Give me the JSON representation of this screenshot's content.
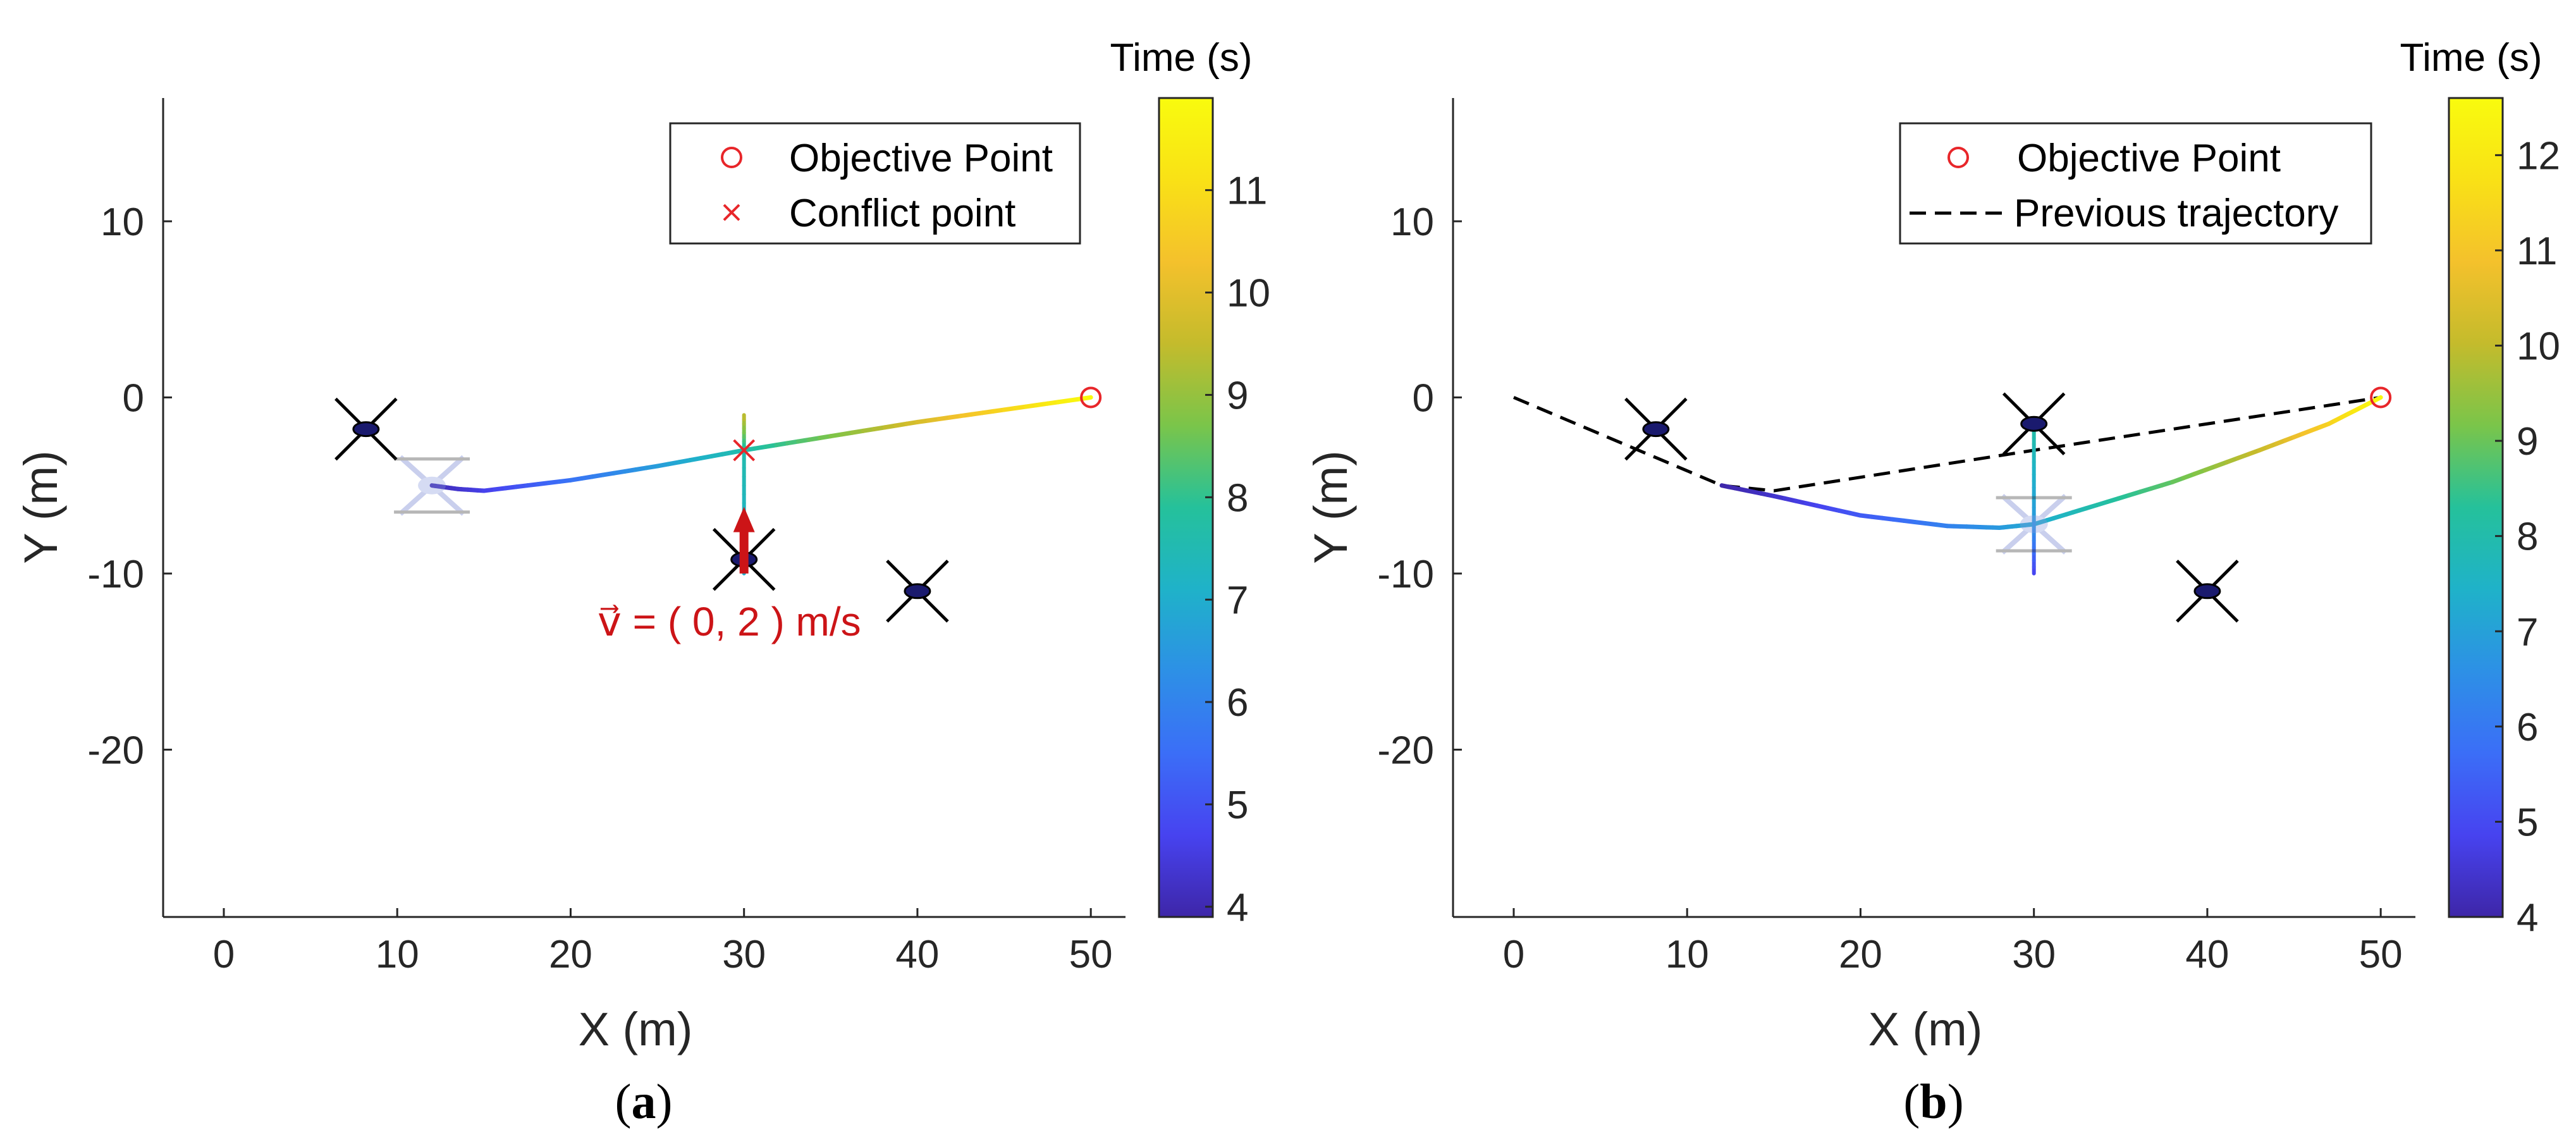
{
  "colors": {
    "axis": "#262626",
    "objective_marker": "#e8262a",
    "conflict_marker": "#e8262a",
    "velocity": "#cc1417",
    "previous_trajectory": "#000000",
    "drone": "#000000",
    "drone_body": "#1a1a6e",
    "colormap": [
      "#3e26a8",
      "#4743f0",
      "#3b6ef7",
      "#2d90e6",
      "#1fb2c9",
      "#25c19b",
      "#7ac54a",
      "#c4bb2c",
      "#f4c12c",
      "#f9e116",
      "#f9fb0e"
    ]
  },
  "chart_data": [
    {
      "type": "line",
      "panel": "a",
      "caption": "(a)",
      "caption_letter": "a",
      "xlabel": "X (m)",
      "ylabel": "Y (m)",
      "xlim": [
        -3.5,
        52
      ],
      "ylim": [
        -29.5,
        17
      ],
      "xticks": [
        0,
        10,
        20,
        30,
        40,
        50
      ],
      "yticks": [
        10,
        0,
        -10,
        -20
      ],
      "colorbar": {
        "title": "Time (s)",
        "range": [
          3.9,
          11.9
        ],
        "ticks": [
          4,
          5,
          6,
          7,
          8,
          9,
          10,
          11
        ]
      },
      "legend": [
        {
          "marker": "circle",
          "label": "Objective Point"
        },
        {
          "marker": "x",
          "label": "Conflict point"
        }
      ],
      "trajectory": {
        "x": [
          12,
          13.5,
          15,
          20,
          25,
          30,
          35,
          40,
          45,
          50
        ],
        "y": [
          -5,
          -5.2,
          -5.3,
          -4.7,
          -3.9,
          -3.0,
          -2.2,
          -1.4,
          -0.7,
          0
        ],
        "t": [
          4.0,
          4.3,
          4.6,
          5.6,
          6.6,
          7.6,
          8.7,
          9.8,
          10.8,
          11.9
        ]
      },
      "intruder_path": {
        "x": [
          30,
          30,
          30,
          30
        ],
        "y": [
          -10,
          -7,
          -3,
          -1
        ],
        "t": [
          7.0,
          7.2,
          7.6,
          9.5
        ]
      },
      "objective_point": {
        "x": 50,
        "y": 0
      },
      "conflict_point": {
        "x": 30,
        "y": -3
      },
      "drones": [
        {
          "x": 8.2,
          "y": -1.8,
          "style": "solid"
        },
        {
          "x": 30,
          "y": -9.2,
          "style": "solid"
        },
        {
          "x": 40,
          "y": -11,
          "style": "solid"
        },
        {
          "x": 12,
          "y": -5,
          "style": "ghost"
        }
      ],
      "velocity_arrow": {
        "x": 30,
        "y_from": -10,
        "y_to": -6.5,
        "label": "v⃗ = ( 0, 2 ) m/s"
      }
    },
    {
      "type": "line",
      "panel": "b",
      "caption": "(b)",
      "caption_letter": "b",
      "xlabel": "X (m)",
      "ylabel": "Y (m)",
      "xlim": [
        -3.5,
        52
      ],
      "ylim": [
        -29.5,
        17
      ],
      "xticks": [
        0,
        10,
        20,
        30,
        40,
        50
      ],
      "yticks": [
        10,
        0,
        -10,
        -20
      ],
      "colorbar": {
        "title": "Time (s)",
        "range": [
          4,
          12.6
        ],
        "ticks": [
          4,
          5,
          6,
          7,
          8,
          9,
          10,
          11,
          12
        ]
      },
      "legend": [
        {
          "marker": "circle",
          "label": "Objective Point"
        },
        {
          "marker": "dashed",
          "label": "Previous trajectory"
        }
      ],
      "trajectory": {
        "x": [
          12,
          15,
          20,
          25,
          28,
          30,
          33,
          38,
          43,
          47,
          50
        ],
        "y": [
          -5,
          -5.6,
          -6.7,
          -7.3,
          -7.4,
          -7.2,
          -6.3,
          -4.8,
          -3.0,
          -1.5,
          0
        ],
        "t": [
          4.0,
          4.4,
          5.3,
          6.2,
          6.8,
          7.2,
          7.9,
          8.9,
          10.1,
          11.3,
          12.6
        ]
      },
      "intruder_path": {
        "x": [
          30,
          30,
          30,
          30
        ],
        "y": [
          -10,
          -7,
          -4,
          -1.3
        ],
        "t": [
          4.8,
          6.8,
          7.5,
          8.2
        ]
      },
      "previous_trajectory": {
        "x": [
          0,
          12,
          15,
          30,
          50
        ],
        "y": [
          0,
          -5,
          -5.3,
          -3.0,
          0
        ]
      },
      "objective_point": {
        "x": 50,
        "y": 0
      },
      "drones": [
        {
          "x": 8.2,
          "y": -1.8,
          "style": "solid"
        },
        {
          "x": 30,
          "y": -1.5,
          "style": "solid"
        },
        {
          "x": 40,
          "y": -11,
          "style": "solid"
        },
        {
          "x": 30,
          "y": -7.2,
          "style": "ghost"
        }
      ]
    }
  ]
}
